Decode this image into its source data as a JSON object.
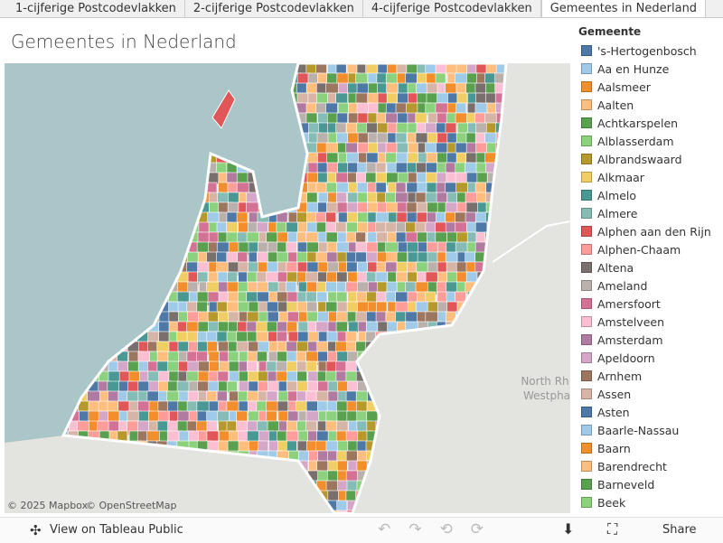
{
  "tabs": [
    "1-cijferige Postcodevlakken",
    "2-cijferige Postcodevlakken",
    "4-cijferige Postcodevlakken",
    "Gemeentes in Nederland"
  ],
  "active_tab": 3,
  "title": "Gemeentes in Nederland",
  "map": {
    "region_label_line1": "North Rh",
    "region_label_line2": "Westpha",
    "attribution_mapbox": "© 2025 Mapbox",
    "attribution_osm": "© OpenStreetMap"
  },
  "legend": {
    "title": "Gemeente",
    "items": [
      {
        "name": "'s-Hertogenbosch",
        "color": "#4e79a7"
      },
      {
        "name": "Aa en Hunze",
        "color": "#a0cbe8"
      },
      {
        "name": "Aalsmeer",
        "color": "#f28e2b"
      },
      {
        "name": "Aalten",
        "color": "#ffbe7d"
      },
      {
        "name": "Achtkarspelen",
        "color": "#59a14f"
      },
      {
        "name": "Alblasserdam",
        "color": "#8cd17d"
      },
      {
        "name": "Albrandswaard",
        "color": "#b6992d"
      },
      {
        "name": "Alkmaar",
        "color": "#f1ce63"
      },
      {
        "name": "Almelo",
        "color": "#499894"
      },
      {
        "name": "Almere",
        "color": "#86bcb6"
      },
      {
        "name": "Alphen aan den Rijn",
        "color": "#e15759"
      },
      {
        "name": "Alphen-Chaam",
        "color": "#ff9d9a"
      },
      {
        "name": "Altena",
        "color": "#79706e"
      },
      {
        "name": "Ameland",
        "color": "#bab0ac"
      },
      {
        "name": "Amersfoort",
        "color": "#d37295"
      },
      {
        "name": "Amstelveen",
        "color": "#fabfd2"
      },
      {
        "name": "Amsterdam",
        "color": "#b07aa1"
      },
      {
        "name": "Apeldoorn",
        "color": "#d4a6c8"
      },
      {
        "name": "Arnhem",
        "color": "#9d7660"
      },
      {
        "name": "Assen",
        "color": "#d7b5a6"
      },
      {
        "name": "Asten",
        "color": "#4e79a7"
      },
      {
        "name": "Baarle-Nassau",
        "color": "#a0cbe8"
      },
      {
        "name": "Baarn",
        "color": "#f28e2b"
      },
      {
        "name": "Barendrecht",
        "color": "#ffbe7d"
      },
      {
        "name": "Barneveld",
        "color": "#59a14f"
      },
      {
        "name": "Beek",
        "color": "#8cd17d"
      }
    ]
  },
  "toolbar": {
    "view_link": "View on Tableau Public",
    "share": "Share"
  }
}
